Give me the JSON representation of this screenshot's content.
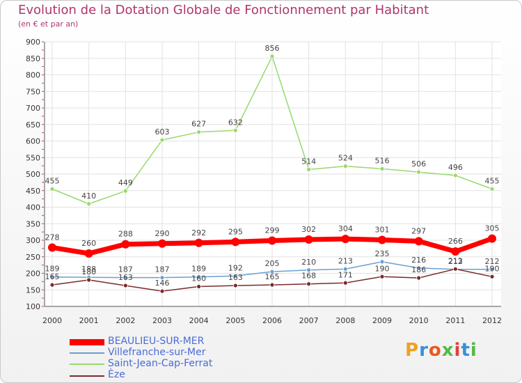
{
  "chart_data": {
    "type": "line",
    "title": "Evolution de la Dotation Globale de Fonctionnement par Habitant",
    "subtitle": "(en € et par an)",
    "xlabel": "",
    "ylabel": "",
    "ylim": [
      100,
      900
    ],
    "yticks": [
      100,
      150,
      200,
      250,
      300,
      350,
      400,
      450,
      500,
      550,
      600,
      650,
      700,
      750,
      800,
      850,
      900
    ],
    "categories": [
      "2000",
      "2001",
      "2002",
      "2003",
      "2004",
      "2005",
      "2006",
      "2007",
      "2008",
      "2009",
      "2010",
      "2011",
      "2012"
    ],
    "series": [
      {
        "name": "Saint-Jean-Cap-Ferrat",
        "color": "#99d86a",
        "values": [
          455,
          410,
          449,
          603,
          627,
          632,
          856,
          514,
          524,
          516,
          506,
          496,
          455
        ],
        "labels": [
          "455",
          "410",
          "449",
          "603",
          "627",
          "632",
          "856",
          "514",
          "524",
          "516",
          "506",
          "496",
          "455"
        ]
      },
      {
        "name": "Villefranche-sur-Mer",
        "color": "#6a9fd2",
        "values": [
          189,
          188,
          187,
          187,
          189,
          192,
          205,
          210,
          213,
          235,
          216,
          212,
          212
        ],
        "labels": [
          "189",
          "188",
          "187",
          "187",
          "189",
          "192",
          "205",
          "210",
          "213",
          "235",
          "216",
          "212",
          "212"
        ]
      },
      {
        "name": "Èze",
        "color": "#7a2a2a",
        "values": [
          165,
          180,
          163,
          146,
          160,
          163,
          165,
          168,
          171,
          190,
          186,
          213,
          190
        ],
        "labels": [
          "165",
          "180",
          "163",
          "146",
          "160",
          "163",
          "165",
          "168",
          "171",
          "190",
          "186",
          "213",
          "190"
        ]
      },
      {
        "name": "BEAULIEU-SUR-MER",
        "color": "#ff0000",
        "values": [
          278,
          260,
          288,
          290,
          292,
          295,
          299,
          302,
          304,
          301,
          297,
          266,
          305
        ],
        "labels": [
          "278",
          "260",
          "288",
          "290",
          "292",
          "295",
          "299",
          "302",
          "304",
          "301",
          "297",
          "266",
          "305"
        ]
      }
    ],
    "legend": {
      "position": "bottom-left",
      "entries": [
        "BEAULIEU-SUR-MER",
        "Villefranche-sur-Mer",
        "Saint-Jean-Cap-Ferrat",
        "Èze"
      ]
    }
  },
  "logo": {
    "text": "Proxiti"
  }
}
